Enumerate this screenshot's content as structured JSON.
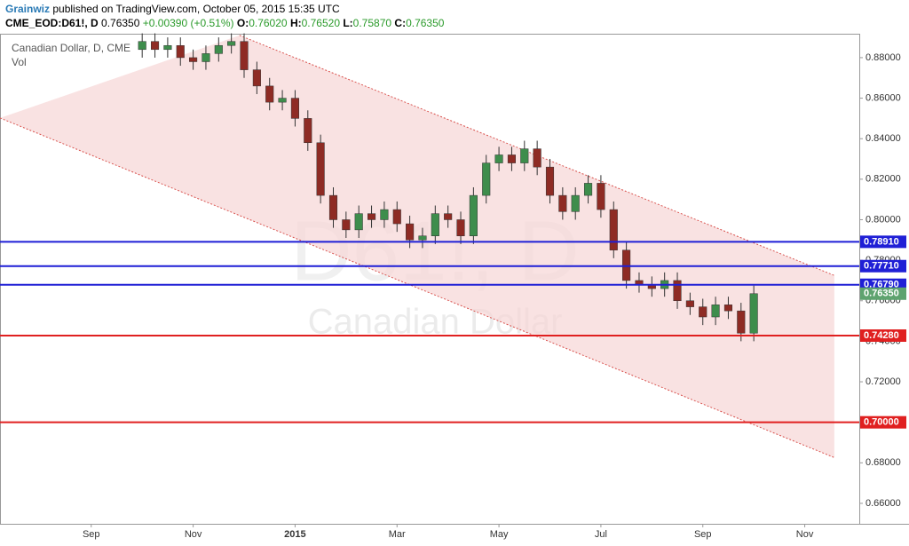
{
  "header": {
    "author": "Grainwiz",
    "published": "published on TradingView.com, October 05, 2015 15:35 UTC",
    "symbol": "CME_EOD:D61!, D",
    "last": "0.76350",
    "change": "+0.00390 (+0.51%)",
    "o_label": "O:",
    "open": "0.76020",
    "h_label": "H:",
    "high": "0.76520",
    "l_label": "L:",
    "low": "0.75870",
    "c_label": "C:",
    "close": "0.76350"
  },
  "chart_data": {
    "type": "candlestick",
    "legend": "Canadian Dollar, D, CME",
    "volume_label": "Vol",
    "watermark": "D61!, D",
    "watermark_sub": "Canadian Dollar",
    "up_color": "#3e8d4c",
    "down_color": "#8e2b24",
    "x": [
      1,
      1.25,
      1.5,
      1.75,
      2,
      2.25,
      2.5,
      2.75,
      3,
      3.25,
      3.5,
      3.75,
      4,
      4.25,
      4.5,
      4.75,
      5,
      5.25,
      5.5,
      5.75,
      6,
      6.25,
      6.5,
      6.75,
      7,
      7.25,
      7.5,
      7.75,
      8,
      8.25,
      8.5,
      8.75,
      9,
      9.25,
      9.5,
      9.75,
      10,
      10.25,
      10.5,
      10.75,
      11,
      11.25,
      11.5,
      11.75,
      12,
      12.25,
      12.5,
      12.75,
      13
    ],
    "open": [
      0.884,
      0.888,
      0.884,
      0.886,
      0.88,
      0.878,
      0.882,
      0.886,
      0.888,
      0.874,
      0.866,
      0.858,
      0.86,
      0.85,
      0.838,
      0.812,
      0.8,
      0.795,
      0.803,
      0.8,
      0.805,
      0.798,
      0.79,
      0.792,
      0.803,
      0.8,
      0.792,
      0.812,
      0.828,
      0.832,
      0.828,
      0.835,
      0.826,
      0.812,
      0.804,
      0.812,
      0.818,
      0.805,
      0.785,
      0.77,
      0.768,
      0.766,
      0.77,
      0.76,
      0.757,
      0.752,
      0.758,
      0.755,
      0.744
    ],
    "high": [
      0.892,
      0.892,
      0.89,
      0.89,
      0.884,
      0.886,
      0.89,
      0.892,
      0.892,
      0.878,
      0.87,
      0.864,
      0.864,
      0.854,
      0.842,
      0.816,
      0.804,
      0.807,
      0.807,
      0.809,
      0.809,
      0.802,
      0.796,
      0.807,
      0.807,
      0.804,
      0.816,
      0.832,
      0.836,
      0.836,
      0.839,
      0.839,
      0.83,
      0.816,
      0.816,
      0.822,
      0.822,
      0.809,
      0.789,
      0.774,
      0.772,
      0.774,
      0.774,
      0.764,
      0.761,
      0.762,
      0.762,
      0.759,
      0.7675
    ],
    "low": [
      0.88,
      0.88,
      0.88,
      0.876,
      0.874,
      0.874,
      0.878,
      0.882,
      0.87,
      0.862,
      0.854,
      0.854,
      0.846,
      0.834,
      0.808,
      0.796,
      0.791,
      0.791,
      0.796,
      0.796,
      0.794,
      0.786,
      0.786,
      0.788,
      0.796,
      0.788,
      0.788,
      0.808,
      0.824,
      0.824,
      0.824,
      0.822,
      0.808,
      0.8,
      0.8,
      0.808,
      0.801,
      0.781,
      0.766,
      0.764,
      0.762,
      0.762,
      0.756,
      0.753,
      0.748,
      0.748,
      0.751,
      0.74,
      0.74
    ],
    "close": [
      0.888,
      0.884,
      0.886,
      0.88,
      0.878,
      0.882,
      0.886,
      0.888,
      0.874,
      0.866,
      0.858,
      0.86,
      0.85,
      0.838,
      0.812,
      0.8,
      0.795,
      0.803,
      0.8,
      0.805,
      0.798,
      0.79,
      0.792,
      0.803,
      0.8,
      0.792,
      0.812,
      0.828,
      0.832,
      0.828,
      0.835,
      0.826,
      0.812,
      0.804,
      0.812,
      0.818,
      0.805,
      0.785,
      0.77,
      0.768,
      0.766,
      0.77,
      0.76,
      0.757,
      0.752,
      0.758,
      0.755,
      0.744,
      0.7635
    ],
    "channel": {
      "color": "#f6d5d5",
      "upper": {
        "x": [
          2.91,
          14.58
        ],
        "y": [
          0.891,
          0.7725
        ]
      },
      "lower": {
        "x": [
          -1.79,
          14.58
        ],
        "y": [
          0.8502,
          0.6826
        ]
      }
    },
    "levels": [
      {
        "value": 0.7891,
        "label": "0.78910",
        "color": "#1f1fd6"
      },
      {
        "value": 0.7771,
        "label": "0.77710",
        "color": "#1f1fd6"
      },
      {
        "value": 0.7679,
        "label": "0.76790",
        "color": "#1f1fd6"
      },
      {
        "value": 0.7428,
        "label": "0.74280",
        "color": "#e02020"
      },
      {
        "value": 0.7,
        "label": "0.70000",
        "color": "#e02020"
      }
    ],
    "last_price": {
      "value": 0.7635,
      "label": "0.76350",
      "color": "#5ea36f"
    },
    "xlim": [
      -1.79,
      15.07
    ],
    "xticks": [
      {
        "value": 0,
        "label": "Sep"
      },
      {
        "value": 2,
        "label": "Nov"
      },
      {
        "value": 4,
        "label": "2015"
      },
      {
        "value": 6,
        "label": "Mar"
      },
      {
        "value": 8,
        "label": "May"
      },
      {
        "value": 10,
        "label": "Jul"
      },
      {
        "value": 12,
        "label": "Sep"
      },
      {
        "value": 14,
        "label": "Nov"
      }
    ],
    "ylim": [
      0.6499,
      0.8918
    ],
    "yticks": [
      {
        "value": 0.66,
        "label": "0.66000"
      },
      {
        "value": 0.68,
        "label": "0.68000"
      },
      {
        "value": 0.7,
        "label": "0.70000"
      },
      {
        "value": 0.72,
        "label": "0.72000"
      },
      {
        "value": 0.74,
        "label": "0.74000"
      },
      {
        "value": 0.76,
        "label": "0.76000"
      },
      {
        "value": 0.78,
        "label": "0.78000"
      },
      {
        "value": 0.8,
        "label": "0.80000"
      },
      {
        "value": 0.82,
        "label": "0.82000"
      },
      {
        "value": 0.84,
        "label": "0.84000"
      },
      {
        "value": 0.86,
        "label": "0.86000"
      },
      {
        "value": 0.88,
        "label": "0.88000"
      }
    ]
  }
}
